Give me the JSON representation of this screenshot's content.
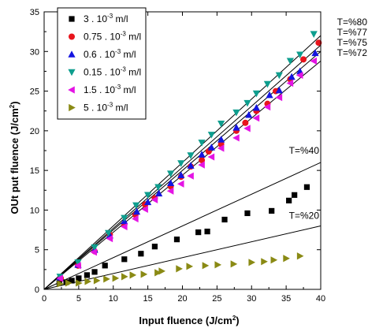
{
  "chart_data": {
    "type": "scatter",
    "title": "",
    "xlabel": "Input fluence (J/cm",
    "xlabel_sup": "2",
    "xlabel_tail": ")",
    "ylabel": "OUt put fluence (J/cm",
    "ylabel_sup": "2",
    "ylabel_tail": ")",
    "xlim": [
      0,
      40
    ],
    "ylim": [
      0,
      35
    ],
    "xticks": [
      0,
      5,
      10,
      15,
      20,
      25,
      30,
      35,
      40
    ],
    "yticks": [
      0,
      5,
      10,
      15,
      20,
      25,
      30,
      35
    ],
    "grid": false,
    "legend_position": "top-left",
    "series": [
      {
        "name": "3 . 10",
        "name_sup": "-3",
        "name_tail": " m/l",
        "marker": "square",
        "color": "#000000",
        "points": [
          [
            2.2,
            0.8
          ],
          [
            3.2,
            0.9
          ],
          [
            4.0,
            1.1
          ],
          [
            5.0,
            1.4
          ],
          [
            6.2,
            1.8
          ],
          [
            7.3,
            2.2
          ],
          [
            8.8,
            3.0
          ],
          [
            11.6,
            3.8
          ],
          [
            14.0,
            4.5
          ],
          [
            16.0,
            5.4
          ],
          [
            19.2,
            6.3
          ],
          [
            22.3,
            7.2
          ],
          [
            23.6,
            7.3
          ],
          [
            26.1,
            8.8
          ],
          [
            29.4,
            9.6
          ],
          [
            32.9,
            9.9
          ],
          [
            35.4,
            11.2
          ],
          [
            36.2,
            11.9
          ],
          [
            38.0,
            12.9
          ]
        ]
      },
      {
        "name": "0.75 . 10",
        "name_sup": "-3",
        "name_tail": " m/l",
        "marker": "circle",
        "color": "#e8141c",
        "points": [
          [
            2.4,
            1.4
          ],
          [
            4.9,
            3.0
          ],
          [
            7.3,
            4.8
          ],
          [
            9.5,
            6.9
          ],
          [
            11.6,
            8.2
          ],
          [
            13.2,
            9.4
          ],
          [
            14.6,
            10.7
          ],
          [
            16.0,
            11.5
          ],
          [
            18.3,
            13.0
          ],
          [
            19.8,
            14.2
          ],
          [
            21.2,
            15.5
          ],
          [
            22.8,
            16.3
          ],
          [
            23.8,
            17.4
          ],
          [
            25.6,
            18.3
          ],
          [
            27.8,
            20.0
          ],
          [
            29.1,
            21.0
          ],
          [
            30.7,
            22.5
          ],
          [
            32.3,
            23.4
          ],
          [
            33.5,
            25.0
          ],
          [
            35.6,
            26.5
          ],
          [
            37.5,
            29.0
          ],
          [
            39.7,
            31.1
          ]
        ]
      },
      {
        "name": "0.6 . 10",
        "name_sup": "-3",
        "name_tail": " m/l",
        "marker": "triangle-up",
        "color": "#1414e0",
        "points": [
          [
            2.3,
            1.5
          ],
          [
            4.9,
            3.1
          ],
          [
            7.3,
            5.0
          ],
          [
            9.5,
            6.8
          ],
          [
            11.6,
            8.6
          ],
          [
            13.4,
            9.8
          ],
          [
            15.0,
            11.0
          ],
          [
            16.6,
            12.1
          ],
          [
            18.3,
            13.4
          ],
          [
            19.8,
            14.4
          ],
          [
            21.2,
            15.6
          ],
          [
            22.8,
            17.0
          ],
          [
            24.2,
            17.9
          ],
          [
            25.6,
            18.9
          ],
          [
            27.8,
            20.4
          ],
          [
            29.6,
            22.0
          ],
          [
            30.7,
            22.9
          ],
          [
            32.6,
            24.5
          ],
          [
            34.0,
            25.1
          ],
          [
            35.8,
            26.8
          ],
          [
            37.0,
            27.5
          ],
          [
            39.2,
            29.8
          ]
        ]
      },
      {
        "name": "0.15 . 10",
        "name_sup": "-3",
        "name_tail": " m/l",
        "marker": "triangle-down",
        "color": "#0e9e8e",
        "points": [
          [
            2.3,
            1.6
          ],
          [
            4.9,
            3.4
          ],
          [
            7.3,
            5.3
          ],
          [
            9.3,
            7.1
          ],
          [
            11.6,
            9.0
          ],
          [
            13.3,
            10.6
          ],
          [
            15.0,
            11.9
          ],
          [
            16.5,
            12.9
          ],
          [
            18.3,
            14.6
          ],
          [
            19.8,
            15.9
          ],
          [
            21.2,
            16.9
          ],
          [
            22.8,
            18.5
          ],
          [
            24.2,
            19.5
          ],
          [
            25.6,
            20.9
          ],
          [
            27.8,
            22.3
          ],
          [
            29.4,
            23.5
          ],
          [
            30.7,
            24.7
          ],
          [
            32.3,
            25.9
          ],
          [
            34.0,
            27.0
          ],
          [
            35.6,
            28.8
          ],
          [
            37.0,
            29.6
          ],
          [
            39.0,
            32.2
          ]
        ]
      },
      {
        "name": "1.5 . 10",
        "name_sup": "-3",
        "name_tail": " m/l",
        "marker": "triangle-left",
        "color": "#e414e4",
        "points": [
          [
            2.3,
            1.4
          ],
          [
            4.9,
            3.0
          ],
          [
            7.2,
            4.7
          ],
          [
            9.5,
            6.4
          ],
          [
            11.6,
            7.9
          ],
          [
            13.2,
            8.9
          ],
          [
            14.6,
            10.1
          ],
          [
            16.0,
            11.3
          ],
          [
            18.3,
            12.4
          ],
          [
            19.8,
            13.3
          ],
          [
            21.2,
            14.3
          ],
          [
            22.8,
            15.7
          ],
          [
            24.2,
            16.7
          ],
          [
            25.6,
            17.8
          ],
          [
            27.8,
            19.1
          ],
          [
            29.4,
            20.3
          ],
          [
            30.7,
            21.6
          ],
          [
            32.3,
            23.0
          ],
          [
            34.0,
            24.2
          ],
          [
            35.6,
            26.0
          ],
          [
            37.0,
            27.0
          ],
          [
            39.0,
            28.8
          ]
        ]
      },
      {
        "name": "5 . 10",
        "name_sup": "-3",
        "name_tail": " m/l",
        "marker": "triangle-right",
        "color": "#8a8a14",
        "points": [
          [
            2.3,
            0.7
          ],
          [
            3.5,
            0.8
          ],
          [
            5.0,
            0.8
          ],
          [
            6.3,
            1.0
          ],
          [
            7.6,
            1.1
          ],
          [
            9.0,
            1.3
          ],
          [
            10.3,
            1.4
          ],
          [
            11.6,
            1.6
          ],
          [
            12.8,
            1.8
          ],
          [
            14.4,
            1.9
          ],
          [
            16.4,
            2.1
          ],
          [
            17.0,
            2.3
          ],
          [
            19.5,
            2.6
          ],
          [
            21.0,
            2.9
          ],
          [
            23.3,
            3.0
          ],
          [
            25.1,
            3.1
          ],
          [
            27.4,
            3.2
          ],
          [
            30.0,
            3.4
          ],
          [
            31.8,
            3.5
          ],
          [
            33.2,
            3.7
          ],
          [
            35.0,
            3.9
          ],
          [
            37.0,
            4.2
          ]
        ]
      }
    ],
    "lines": [
      {
        "label": "T=%80",
        "slope": 0.8
      },
      {
        "label": "T=%77",
        "slope": 0.77
      },
      {
        "label": "T=%75",
        "slope": 0.75
      },
      {
        "label": "T=%72",
        "slope": 0.72
      },
      {
        "label": "T=%40",
        "slope": 0.4
      },
      {
        "label": "T=%20",
        "slope": 0.2
      }
    ]
  }
}
